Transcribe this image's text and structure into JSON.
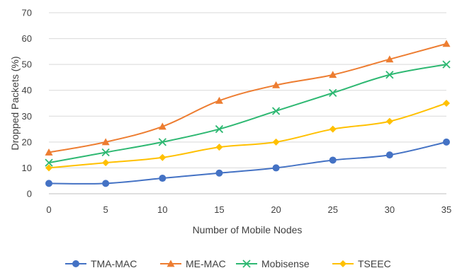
{
  "chart_data": {
    "type": "line",
    "title": "",
    "xlabel": "Number of Mobile Nodes",
    "ylabel": "Dropped Packets (%)",
    "x": [
      0,
      5,
      10,
      15,
      20,
      25,
      30,
      35
    ],
    "xlim": [
      0,
      35
    ],
    "ylim": [
      0,
      70
    ],
    "xticks": [
      "0",
      "5",
      "10",
      "15",
      "20",
      "25",
      "30",
      "35"
    ],
    "yticks": [
      "0",
      "10",
      "20",
      "30",
      "40",
      "50",
      "60",
      "70"
    ],
    "grid": "horizontal",
    "legend_position": "bottom",
    "series": [
      {
        "name": "TMA-MAC",
        "marker": "circle",
        "color": "#4472C4",
        "values": [
          4,
          4,
          6,
          8,
          10,
          13,
          15,
          20
        ]
      },
      {
        "name": "ME-MAC",
        "marker": "triangle",
        "color": "#ED7D31",
        "values": [
          16,
          20,
          26,
          36,
          42,
          46,
          52,
          58
        ]
      },
      {
        "name": "Mobisense",
        "marker": "x",
        "color": "#2EB872",
        "values": [
          12,
          16,
          20,
          25,
          32,
          39,
          46,
          50
        ]
      },
      {
        "name": "TSEEC",
        "marker": "diamond",
        "color": "#FFC000",
        "values": [
          10,
          12,
          14,
          18,
          20,
          25,
          28,
          35
        ]
      }
    ],
    "colors": {
      "grid": "#D9D9D9",
      "axis": "#BFBFBF",
      "text": "#404040"
    }
  }
}
